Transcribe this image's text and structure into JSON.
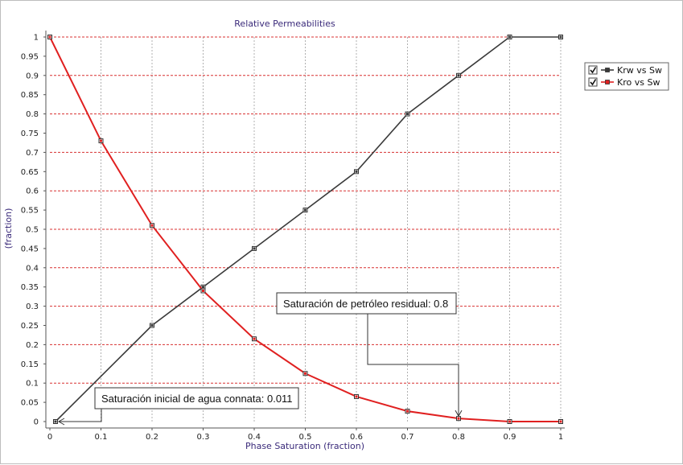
{
  "chart_data": {
    "type": "line",
    "title": "Relative Permeabilities",
    "xlabel": "Phase Saturation (fraction)",
    "ylabel": "(fraction)",
    "xlim": [
      0,
      1
    ],
    "ylim": [
      0,
      1
    ],
    "x_ticks": [
      "0",
      "0.1",
      "0.2",
      "0.3",
      "0.4",
      "0.5",
      "0.6",
      "0.7",
      "0.8",
      "0.9",
      "1"
    ],
    "y_ticks": [
      "0",
      "0.05",
      "0.1",
      "0.15",
      "0.2",
      "0.25",
      "0.3",
      "0.35",
      "0.4",
      "0.45",
      "0.5",
      "0.55",
      "0.6",
      "0.65",
      "0.7",
      "0.75",
      "0.8",
      "0.85",
      "0.9",
      "0.95",
      "1"
    ],
    "grid": true,
    "legend_position": "right",
    "series": [
      {
        "name": "Krw vs Sw",
        "color": "#3a3a3a",
        "checked": true,
        "x": [
          0.011,
          0.2,
          0.3,
          0.4,
          0.5,
          0.6,
          0.7,
          0.8,
          0.9,
          1.0
        ],
        "y": [
          0.0,
          0.25,
          0.35,
          0.45,
          0.55,
          0.65,
          0.8,
          0.9,
          1.0,
          1.0
        ]
      },
      {
        "name": "Kro vs Sw",
        "color": "#e02020",
        "checked": true,
        "x": [
          0.0,
          0.1,
          0.2,
          0.3,
          0.4,
          0.5,
          0.6,
          0.7,
          0.8,
          0.9,
          1.0
        ],
        "y": [
          1.0,
          0.73,
          0.51,
          0.34,
          0.215,
          0.125,
          0.065,
          0.027,
          0.008,
          0.0,
          0.0
        ]
      }
    ],
    "annotations": [
      {
        "text": "Saturación de petróleo residual: 0.8",
        "target_x": 0.8,
        "target_y": 0.008
      },
      {
        "text": "Saturación inicial de agua connata: 0.011",
        "target_x": 0.011,
        "target_y": 0.0
      }
    ]
  },
  "colors": {
    "grid_major": "#d83030",
    "grid_vertical": "#b0b0b0",
    "axis": "#555555"
  }
}
